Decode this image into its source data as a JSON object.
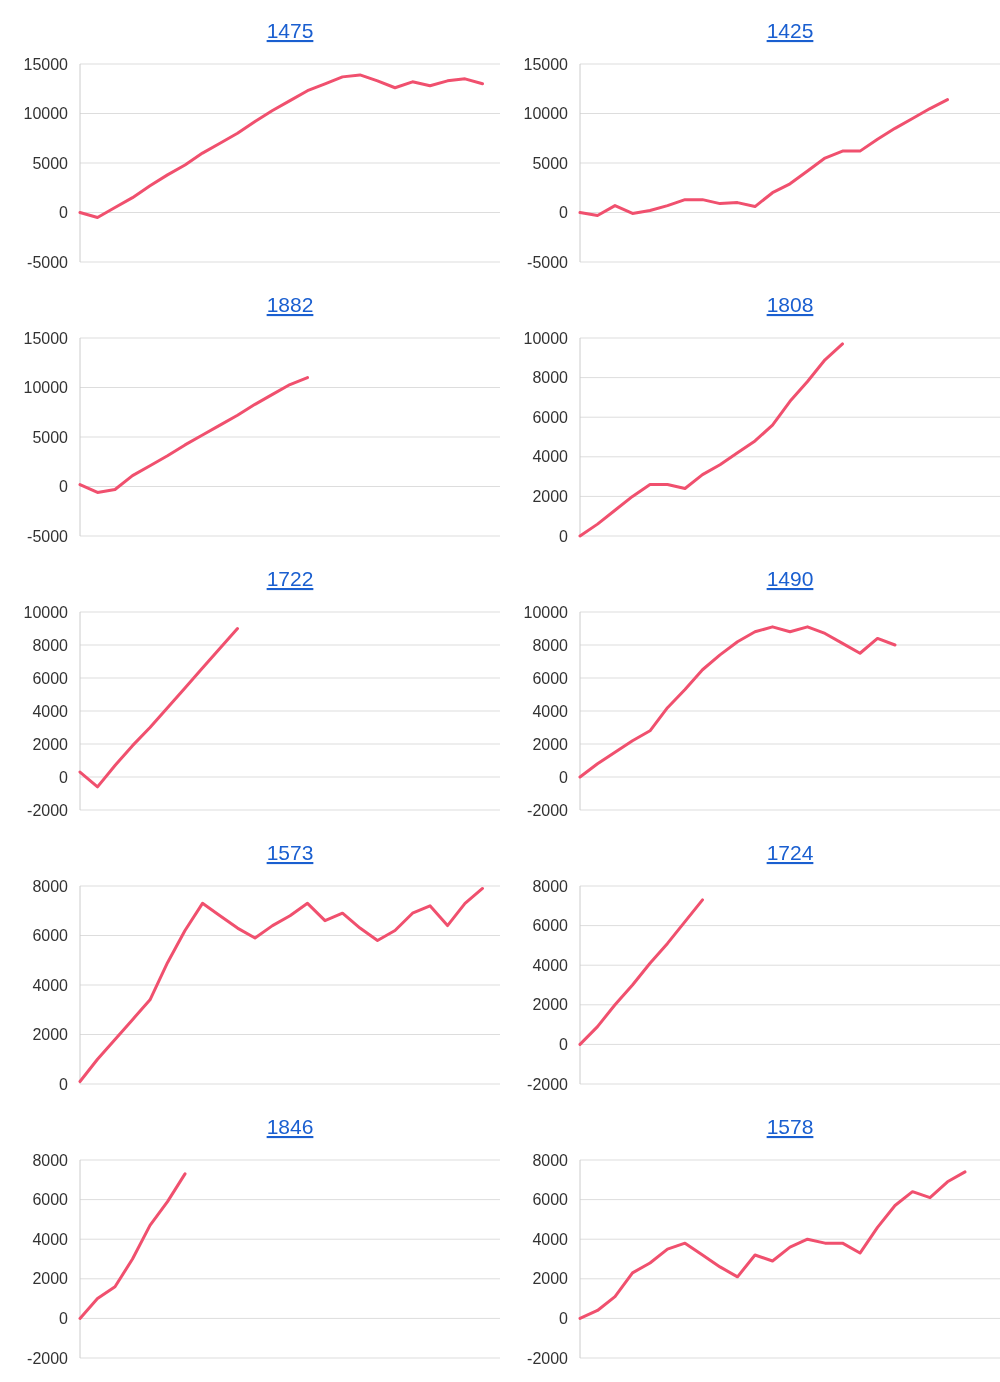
{
  "chart_data": [
    {
      "type": "line",
      "title": "1475",
      "categories": [
        null,
        null,
        null,
        null,
        null,
        null,
        null,
        null,
        null,
        null,
        null,
        null,
        null,
        null,
        null,
        null,
        null,
        null,
        null,
        null,
        null,
        null,
        null,
        null,
        null
      ],
      "ylim": [
        -5000,
        15000
      ],
      "yticks": [
        -5000,
        0,
        5000,
        10000,
        15000
      ],
      "grid": "y",
      "series": [
        {
          "color": "#f0506e",
          "values": [
            0,
            -500,
            500,
            1500,
            2700,
            3800,
            4800,
            6000,
            7000,
            8000,
            9200,
            10300,
            11300,
            12300,
            13000,
            13700,
            13900,
            13300,
            12600,
            13200,
            12800,
            13300,
            13500,
            13000,
            null
          ]
        }
      ]
    },
    {
      "type": "line",
      "title": "1425",
      "categories": [
        null,
        null,
        null,
        null,
        null,
        null,
        null,
        null,
        null,
        null,
        null,
        null,
        null,
        null,
        null,
        null,
        null,
        null,
        null,
        null,
        null,
        null,
        null,
        null,
        null
      ],
      "ylim": [
        -5000,
        15000
      ],
      "yticks": [
        -5000,
        0,
        5000,
        10000,
        15000
      ],
      "grid": "y",
      "series": [
        {
          "color": "#f0506e",
          "values": [
            0,
            -300,
            700,
            -100,
            200,
            700,
            1300,
            1300,
            900,
            1000,
            600,
            2000,
            2900,
            4200,
            5500,
            6200,
            6200,
            7400,
            8500,
            9500,
            10500,
            11400,
            null,
            null,
            null
          ]
        }
      ]
    },
    {
      "type": "line",
      "title": "1882",
      "categories": [
        null,
        null,
        null,
        null,
        null,
        null,
        null,
        null,
        null,
        null,
        null,
        null,
        null,
        null,
        null,
        null,
        null,
        null,
        null,
        null,
        null,
        null,
        null,
        null,
        null
      ],
      "ylim": [
        -5000,
        15000
      ],
      "yticks": [
        -5000,
        0,
        5000,
        10000,
        15000
      ],
      "grid": "y",
      "series": [
        {
          "color": "#f0506e",
          "values": [
            200,
            -600,
            -300,
            1100,
            2100,
            3100,
            4200,
            5200,
            6200,
            7200,
            8300,
            9300,
            10300,
            11000,
            null,
            null,
            null,
            null,
            null,
            null,
            null,
            null,
            null,
            null,
            null
          ]
        }
      ]
    },
    {
      "type": "line",
      "title": "1808",
      "categories": [
        null,
        null,
        null,
        null,
        null,
        null,
        null,
        null,
        null,
        null,
        null,
        null,
        null,
        null,
        null,
        null,
        null,
        null,
        null,
        null,
        null,
        null,
        null,
        null,
        null
      ],
      "ylim": [
        0,
        10000
      ],
      "yticks": [
        0,
        2000,
        4000,
        6000,
        8000,
        10000
      ],
      "grid": "y",
      "series": [
        {
          "color": "#f0506e",
          "values": [
            0,
            600,
            1300,
            2000,
            2600,
            2600,
            2400,
            3100,
            3600,
            4200,
            4800,
            5600,
            6800,
            7800,
            8900,
            9700,
            null,
            null,
            null,
            null,
            null,
            null,
            null,
            null,
            null
          ]
        }
      ]
    },
    {
      "type": "line",
      "title": "1722",
      "categories": [
        null,
        null,
        null,
        null,
        null,
        null,
        null,
        null,
        null,
        null,
        null,
        null,
        null,
        null,
        null,
        null,
        null,
        null,
        null,
        null,
        null,
        null,
        null,
        null,
        null
      ],
      "ylim": [
        -2000,
        10000
      ],
      "yticks": [
        -2000,
        0,
        2000,
        4000,
        6000,
        8000,
        10000
      ],
      "grid": "y",
      "series": [
        {
          "color": "#f0506e",
          "values": [
            300,
            -600,
            700,
            1900,
            3000,
            4200,
            5400,
            6600,
            7800,
            9000,
            null,
            null,
            null,
            null,
            null,
            null,
            null,
            null,
            null,
            null,
            null,
            null,
            null,
            null,
            null
          ]
        }
      ]
    },
    {
      "type": "line",
      "title": "1490",
      "categories": [
        null,
        null,
        null,
        null,
        null,
        null,
        null,
        null,
        null,
        null,
        null,
        null,
        null,
        null,
        null,
        null,
        null,
        null,
        null,
        null,
        null,
        null,
        null,
        null,
        null
      ],
      "ylim": [
        -2000,
        10000
      ],
      "yticks": [
        -2000,
        0,
        2000,
        4000,
        6000,
        8000,
        10000
      ],
      "grid": "y",
      "series": [
        {
          "color": "#f0506e",
          "values": [
            0,
            800,
            1500,
            2200,
            2800,
            4200,
            5300,
            6500,
            7400,
            8200,
            8800,
            9100,
            8800,
            9100,
            8700,
            8100,
            7500,
            8400,
            8000,
            null,
            null,
            null,
            null,
            null,
            null
          ]
        }
      ]
    },
    {
      "type": "line",
      "title": "1573",
      "categories": [
        null,
        null,
        null,
        null,
        null,
        null,
        null,
        null,
        null,
        null,
        null,
        null,
        null,
        null,
        null,
        null,
        null,
        null,
        null,
        null,
        null,
        null,
        null,
        null,
        null
      ],
      "ylim": [
        0,
        8000
      ],
      "yticks": [
        0,
        2000,
        4000,
        6000,
        8000
      ],
      "grid": "y",
      "series": [
        {
          "color": "#f0506e",
          "values": [
            100,
            1000,
            1800,
            2600,
            3400,
            4900,
            6200,
            7300,
            6800,
            6300,
            5900,
            6400,
            6800,
            7300,
            6600,
            6900,
            6300,
            5800,
            6200,
            6900,
            7200,
            6400,
            7300,
            7900,
            null
          ]
        }
      ]
    },
    {
      "type": "line",
      "title": "1724",
      "categories": [
        null,
        null,
        null,
        null,
        null,
        null,
        null,
        null,
        null,
        null,
        null,
        null,
        null,
        null,
        null,
        null,
        null,
        null,
        null,
        null,
        null,
        null,
        null,
        null,
        null
      ],
      "ylim": [
        -2000,
        8000
      ],
      "yticks": [
        -2000,
        0,
        2000,
        4000,
        6000,
        8000
      ],
      "grid": "y",
      "series": [
        {
          "color": "#f0506e",
          "values": [
            0,
            900,
            2000,
            3000,
            4100,
            5100,
            6200,
            7300,
            null,
            null,
            null,
            null,
            null,
            null,
            null,
            null,
            null,
            null,
            null,
            null,
            null,
            null,
            null,
            null,
            null
          ]
        }
      ]
    },
    {
      "type": "line",
      "title": "1846",
      "categories": [
        null,
        null,
        null,
        null,
        null,
        null,
        null,
        null,
        null,
        null,
        null,
        null,
        null,
        null,
        null,
        null,
        null,
        null,
        null,
        null,
        null,
        null,
        null,
        null,
        null
      ],
      "ylim": [
        -2000,
        8000
      ],
      "yticks": [
        -2000,
        0,
        2000,
        4000,
        6000,
        8000
      ],
      "grid": "y",
      "series": [
        {
          "color": "#f0506e",
          "values": [
            0,
            1000,
            1600,
            3000,
            4700,
            5900,
            7300,
            null,
            null,
            null,
            null,
            null,
            null,
            null,
            null,
            null,
            null,
            null,
            null,
            null,
            null,
            null,
            null,
            null,
            null
          ]
        }
      ]
    },
    {
      "type": "line",
      "title": "1578",
      "categories": [
        null,
        null,
        null,
        null,
        null,
        null,
        null,
        null,
        null,
        null,
        null,
        null,
        null,
        null,
        null,
        null,
        null,
        null,
        null,
        null,
        null,
        null,
        null,
        null,
        null
      ],
      "ylim": [
        -2000,
        8000
      ],
      "yticks": [
        -2000,
        0,
        2000,
        4000,
        6000,
        8000
      ],
      "grid": "y",
      "series": [
        {
          "color": "#f0506e",
          "values": [
            0,
            400,
            1100,
            2300,
            2800,
            3500,
            3800,
            3200,
            2600,
            2100,
            3200,
            2900,
            3600,
            4000,
            3800,
            3800,
            3300,
            4600,
            5700,
            6400,
            6100,
            6900,
            7400,
            null,
            null
          ]
        }
      ]
    }
  ]
}
